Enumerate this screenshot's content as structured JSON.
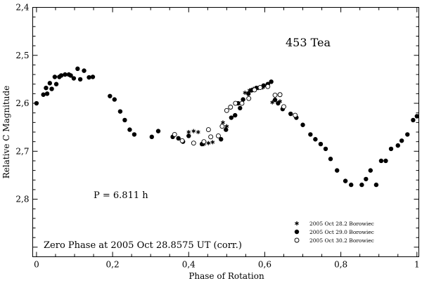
{
  "chart_data": {
    "type": "scatter",
    "title": "453 Tea",
    "xlabel": "Phase of Rotation",
    "ylabel": "Relative C Magnitude",
    "xlim": [
      -0.01,
      1.005
    ],
    "ylim": [
      2.4,
      2.92
    ],
    "y_inverted": true,
    "grid": false,
    "legend_position": "bottom-right",
    "x_ticks": [
      0,
      0.2,
      0.4,
      0.6,
      0.8,
      1
    ],
    "x_tick_labels": [
      "0",
      "0,2",
      "0,4",
      "0,6",
      "0,8",
      "1"
    ],
    "y_ticks": [
      2.4,
      2.5,
      2.6,
      2.7,
      2.8
    ],
    "y_tick_labels": [
      "2,4",
      "2,5",
      "2,6",
      "2,7",
      "2,8"
    ],
    "annotations": {
      "period": "P = 6.811 h",
      "zero_phase": "Zero Phase at 2005 Oct 28.8575 UT (corr.)"
    },
    "series": [
      {
        "name": "2005 Oct 28.2 Borowiec",
        "marker": "asterisk",
        "points": [
          [
            0.4,
            2.66
          ],
          [
            0.413,
            2.658
          ],
          [
            0.425,
            2.66
          ],
          [
            0.44,
            2.685
          ],
          [
            0.452,
            2.683
          ],
          [
            0.463,
            2.681
          ],
          [
            0.49,
            2.64
          ],
          [
            0.5,
            2.648
          ],
          [
            0.548,
            2.578
          ],
          [
            0.56,
            2.573
          ],
          [
            0.57,
            2.57
          ],
          [
            0.583,
            2.568
          ],
          [
            0.595,
            2.567
          ],
          [
            0.62,
            2.598
          ],
          [
            0.64,
            2.596
          ]
        ]
      },
      {
        "name": "2005 Oct 29.0 Borowiec",
        "marker": "filled-circle",
        "points": [
          [
            0.0,
            2.6
          ],
          [
            0.018,
            2.582
          ],
          [
            0.025,
            2.568
          ],
          [
            0.028,
            2.58
          ],
          [
            0.035,
            2.558
          ],
          [
            0.04,
            2.57
          ],
          [
            0.048,
            2.545
          ],
          [
            0.052,
            2.56
          ],
          [
            0.06,
            2.545
          ],
          [
            0.065,
            2.542
          ],
          [
            0.075,
            2.54
          ],
          [
            0.085,
            2.54
          ],
          [
            0.09,
            2.542
          ],
          [
            0.098,
            2.548
          ],
          [
            0.108,
            2.528
          ],
          [
            0.115,
            2.55
          ],
          [
            0.125,
            2.532
          ],
          [
            0.138,
            2.546
          ],
          [
            0.148,
            2.545
          ],
          [
            0.193,
            2.585
          ],
          [
            0.205,
            2.592
          ],
          [
            0.22,
            2.617
          ],
          [
            0.232,
            2.635
          ],
          [
            0.245,
            2.655
          ],
          [
            0.257,
            2.665
          ],
          [
            0.303,
            2.67
          ],
          [
            0.32,
            2.658
          ],
          [
            0.358,
            2.67
          ],
          [
            0.373,
            2.673
          ],
          [
            0.385,
            2.68
          ],
          [
            0.4,
            2.668
          ],
          [
            0.435,
            2.685
          ],
          [
            0.485,
            2.675
          ],
          [
            0.498,
            2.655
          ],
          [
            0.512,
            2.63
          ],
          [
            0.522,
            2.625
          ],
          [
            0.53,
            2.6
          ],
          [
            0.535,
            2.61
          ],
          [
            0.543,
            2.592
          ],
          [
            0.557,
            2.58
          ],
          [
            0.565,
            2.573
          ],
          [
            0.578,
            2.568
          ],
          [
            0.597,
            2.563
          ],
          [
            0.608,
            2.56
          ],
          [
            0.617,
            2.555
          ],
          [
            0.627,
            2.593
          ],
          [
            0.635,
            2.6
          ],
          [
            0.647,
            2.612
          ],
          [
            0.668,
            2.622
          ],
          [
            0.683,
            2.63
          ],
          [
            0.7,
            2.645
          ],
          [
            0.72,
            2.665
          ],
          [
            0.733,
            2.675
          ],
          [
            0.747,
            2.685
          ],
          [
            0.76,
            2.695
          ],
          [
            0.773,
            2.716
          ],
          [
            0.79,
            2.74
          ],
          [
            0.812,
            2.762
          ],
          [
            0.827,
            2.77
          ],
          [
            0.855,
            2.77
          ],
          [
            0.866,
            2.758
          ],
          [
            0.878,
            2.74
          ],
          [
            0.893,
            2.77
          ],
          [
            0.906,
            2.72
          ],
          [
            0.918,
            2.72
          ],
          [
            0.932,
            2.695
          ],
          [
            0.95,
            2.688
          ],
          [
            0.96,
            2.678
          ],
          [
            0.975,
            2.665
          ],
          [
            0.99,
            2.635
          ],
          [
            1.0,
            2.627
          ]
        ]
      },
      {
        "name": "2005 Oct 30.2 Borowiec",
        "marker": "open-circle",
        "points": [
          [
            0.363,
            2.665
          ],
          [
            0.383,
            2.678
          ],
          [
            0.413,
            2.683
          ],
          [
            0.44,
            2.68
          ],
          [
            0.452,
            2.655
          ],
          [
            0.458,
            2.67
          ],
          [
            0.478,
            2.668
          ],
          [
            0.488,
            2.648
          ],
          [
            0.5,
            2.615
          ],
          [
            0.51,
            2.608
          ],
          [
            0.523,
            2.6
          ],
          [
            0.54,
            2.6
          ],
          [
            0.558,
            2.59
          ],
          [
            0.573,
            2.572
          ],
          [
            0.588,
            2.567
          ],
          [
            0.608,
            2.565
          ],
          [
            0.627,
            2.583
          ],
          [
            0.64,
            2.582
          ],
          [
            0.65,
            2.607
          ],
          [
            0.68,
            2.625
          ]
        ]
      }
    ]
  }
}
